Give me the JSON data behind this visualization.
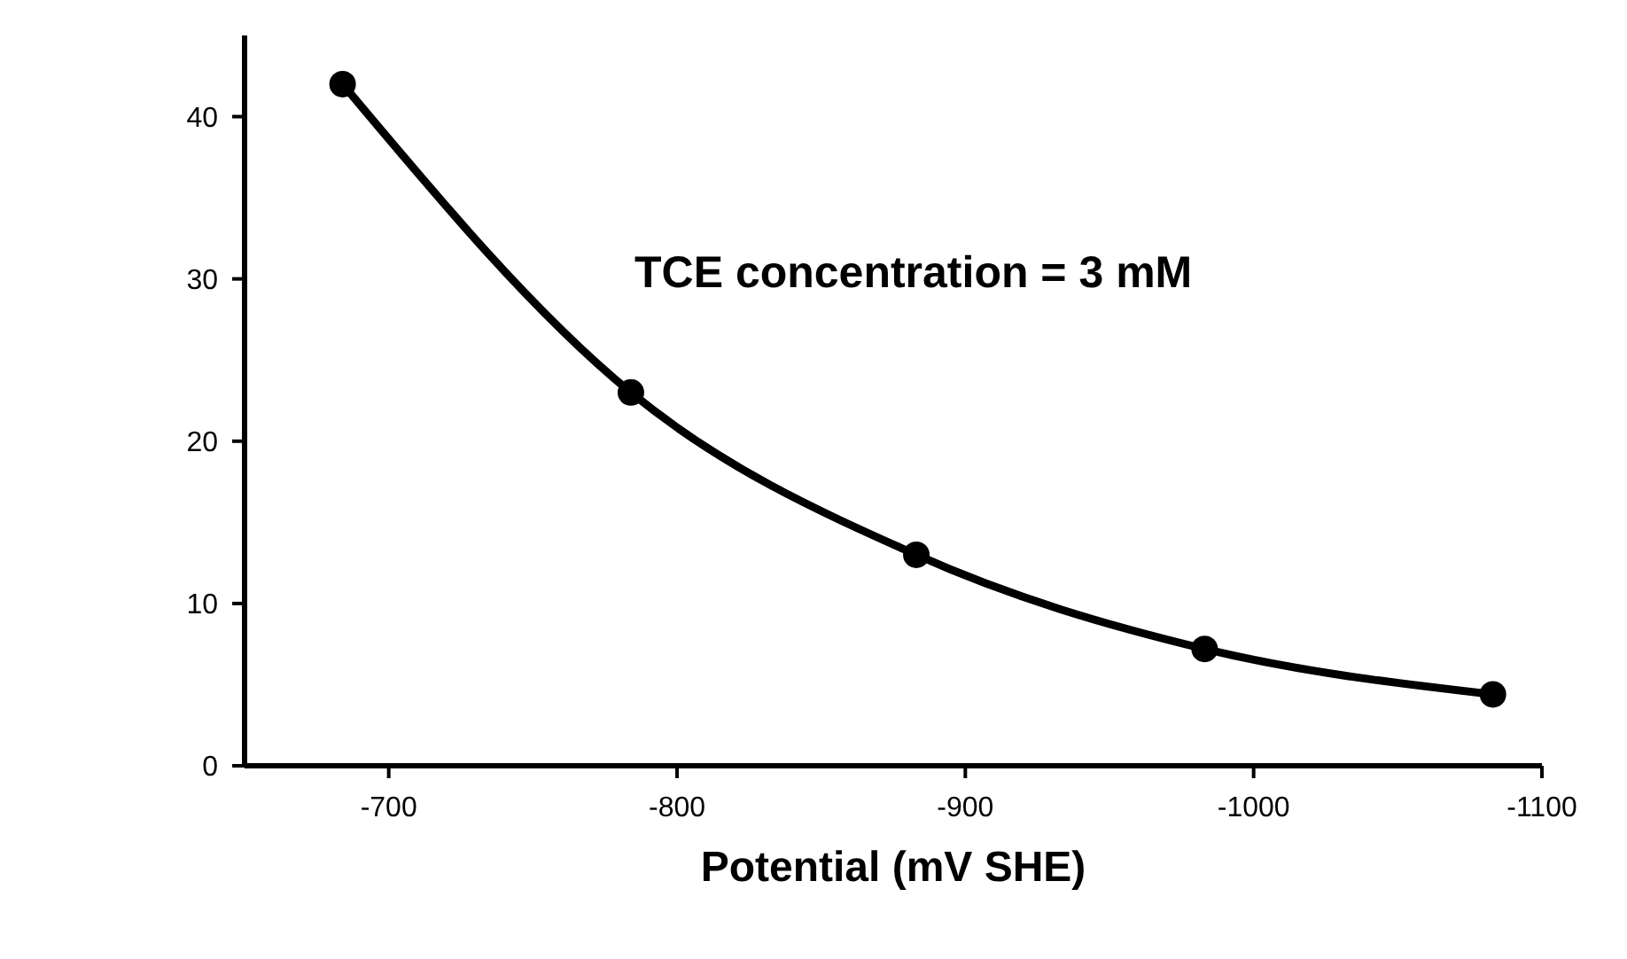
{
  "chart_data": {
    "type": "line",
    "xlabel": "Potential (mV SHE)",
    "x": [
      -684,
      -784,
      -883,
      -983,
      -1083
    ],
    "series": [
      {
        "color": "#000000",
        "values": [
          42,
          23,
          13,
          7.2,
          4.4
        ]
      }
    ],
    "xlim": [
      -650,
      -1100
    ],
    "xticks": [
      -700,
      -800,
      -900,
      -1000,
      -1100
    ],
    "ylim": [
      0,
      45
    ],
    "yticks": [
      0,
      10,
      20,
      30,
      40
    ],
    "marker": "circle",
    "line_style": "solid",
    "annotations": [
      "TCE concentration = 3 mM"
    ]
  }
}
